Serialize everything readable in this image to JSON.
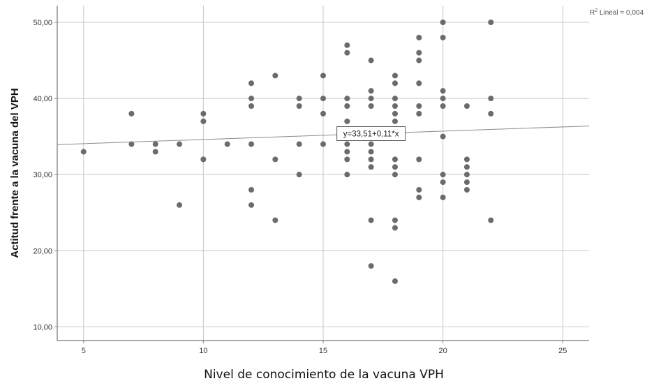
{
  "chart_data": {
    "type": "scatter",
    "xlabel": "Nivel de conocimiento de la vacuna VPH",
    "ylabel": "Actitud frente a la vacuna del VPH",
    "xlim": [
      3.9,
      26.1
    ],
    "ylim": [
      8.2,
      52.2
    ],
    "x_ticks": [
      5,
      10,
      15,
      20,
      25
    ],
    "x_tick_labels": [
      "5",
      "10",
      "15",
      "20",
      "25"
    ],
    "y_ticks": [
      10,
      20,
      30,
      40,
      50
    ],
    "y_tick_labels": [
      "10,00",
      "20,00",
      "30,00",
      "40,00",
      "50,00"
    ],
    "grid": true,
    "r2_label": {
      "prefix": "R",
      "sup": "2",
      "text": " Lineal = 0,004"
    },
    "fit_line": {
      "intercept": 33.51,
      "slope": 0.11,
      "equation": "y=33,51+0,11*x",
      "label_x": 17
    },
    "marker_color": "#6b6b6b",
    "line_color": "#8a8a8a",
    "grid_color": "#c8c8c8",
    "points": [
      [
        5,
        33
      ],
      [
        7,
        38
      ],
      [
        7,
        34
      ],
      [
        8,
        34
      ],
      [
        8,
        33
      ],
      [
        9,
        34
      ],
      [
        9,
        26
      ],
      [
        10,
        38
      ],
      [
        10,
        37
      ],
      [
        10,
        32
      ],
      [
        11,
        34
      ],
      [
        12,
        42
      ],
      [
        12,
        40
      ],
      [
        12,
        39
      ],
      [
        12,
        34
      ],
      [
        12,
        28
      ],
      [
        12,
        26
      ],
      [
        13,
        43
      ],
      [
        13,
        32
      ],
      [
        13,
        24
      ],
      [
        14,
        40
      ],
      [
        14,
        39
      ],
      [
        14,
        34
      ],
      [
        14,
        30
      ],
      [
        15,
        43
      ],
      [
        15,
        40
      ],
      [
        15,
        38
      ],
      [
        15,
        34
      ],
      [
        16,
        47
      ],
      [
        16,
        46
      ],
      [
        16,
        40
      ],
      [
        16,
        39
      ],
      [
        16,
        37
      ],
      [
        16,
        34
      ],
      [
        16,
        33
      ],
      [
        16,
        32
      ],
      [
        16,
        30
      ],
      [
        17,
        45
      ],
      [
        17,
        41
      ],
      [
        17,
        40
      ],
      [
        17,
        39
      ],
      [
        17,
        35
      ],
      [
        17,
        34
      ],
      [
        17,
        33
      ],
      [
        17,
        32
      ],
      [
        17,
        31
      ],
      [
        17,
        24
      ],
      [
        17,
        18
      ],
      [
        18,
        43
      ],
      [
        18,
        42
      ],
      [
        18,
        40
      ],
      [
        18,
        39
      ],
      [
        18,
        38
      ],
      [
        18,
        37
      ],
      [
        18,
        32
      ],
      [
        18,
        31
      ],
      [
        18,
        30
      ],
      [
        18,
        24
      ],
      [
        18,
        23
      ],
      [
        18,
        16
      ],
      [
        19,
        48
      ],
      [
        19,
        46
      ],
      [
        19,
        45
      ],
      [
        19,
        42
      ],
      [
        19,
        39
      ],
      [
        19,
        38
      ],
      [
        19,
        32
      ],
      [
        19,
        28
      ],
      [
        19,
        27
      ],
      [
        20,
        50
      ],
      [
        20,
        48
      ],
      [
        20,
        41
      ],
      [
        20,
        40
      ],
      [
        20,
        39
      ],
      [
        20,
        35
      ],
      [
        20,
        30
      ],
      [
        20,
        29
      ],
      [
        20,
        27
      ],
      [
        21,
        39
      ],
      [
        21,
        32
      ],
      [
        21,
        31
      ],
      [
        21,
        30
      ],
      [
        21,
        29
      ],
      [
        21,
        28
      ],
      [
        22,
        50
      ],
      [
        22,
        40
      ],
      [
        22,
        38
      ],
      [
        22,
        24
      ]
    ]
  }
}
